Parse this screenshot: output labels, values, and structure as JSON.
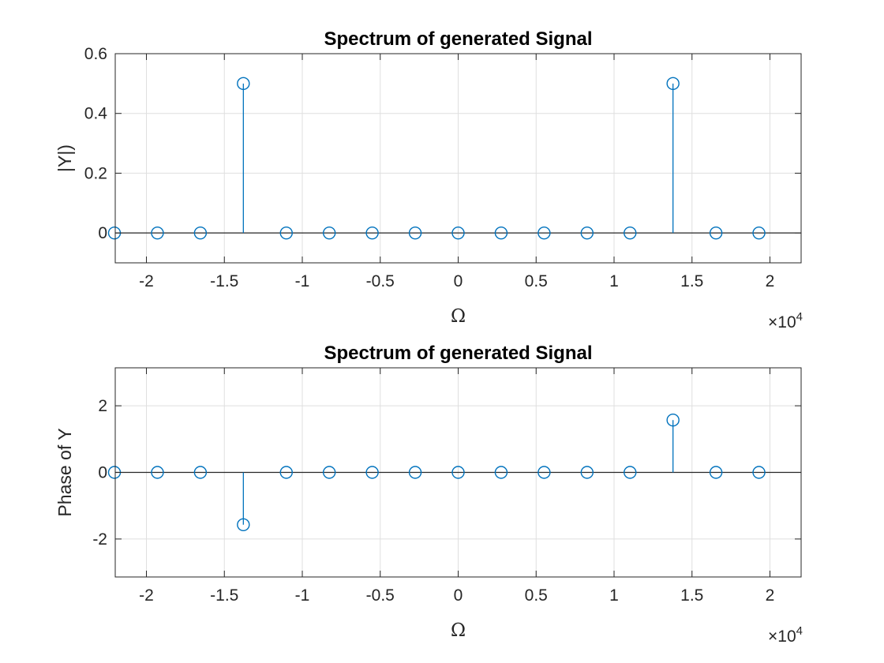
{
  "chart_data": [
    {
      "type": "stem",
      "title": "Spectrum of generated Signal",
      "xlabel": "Ω",
      "ylabel": "|Y|)",
      "x_multiplier": {
        "times": "×",
        "base": "10",
        "exp": "4"
      },
      "xlim": [
        -22000,
        22000
      ],
      "ylim": [
        -0.1,
        0.6
      ],
      "xticks": [
        -20000,
        -15000,
        -10000,
        -5000,
        0,
        5000,
        10000,
        15000,
        20000
      ],
      "xticklabels": [
        "-2",
        "-1.5",
        "-1",
        "-0.5",
        "0",
        "0.5",
        "1",
        "1.5",
        "2"
      ],
      "yticks": [
        0,
        0.2,
        0.4,
        0.6
      ],
      "yticklabels": [
        "0",
        "0.2",
        "0.4",
        "0.6"
      ],
      "grid": true,
      "color": "#0072BD",
      "x": [
        -22050,
        -19294,
        -16538,
        -13781,
        -11025,
        -8269,
        -5513,
        -2756,
        0,
        2756,
        5513,
        8269,
        11025,
        13781,
        16538,
        19294
      ],
      "y": [
        0,
        0,
        0,
        0.5,
        0,
        0,
        0,
        0,
        0,
        0,
        0,
        0,
        0,
        0.5,
        0,
        0
      ]
    },
    {
      "type": "stem",
      "title": "Spectrum of generated Signal",
      "xlabel": "Ω",
      "ylabel": "Phase of Y",
      "x_multiplier": {
        "times": "×",
        "base": "10",
        "exp": "4"
      },
      "xlim": [
        -22000,
        22000
      ],
      "ylim": [
        -3.14,
        3.14
      ],
      "xticks": [
        -20000,
        -15000,
        -10000,
        -5000,
        0,
        5000,
        10000,
        15000,
        20000
      ],
      "xticklabels": [
        "-2",
        "-1.5",
        "-1",
        "-0.5",
        "0",
        "0.5",
        "1",
        "1.5",
        "2"
      ],
      "yticks": [
        -2,
        0,
        2
      ],
      "yticklabels": [
        "-2",
        "0",
        "2"
      ],
      "grid": true,
      "color": "#0072BD",
      "x": [
        -22050,
        -19294,
        -16538,
        -13781,
        -11025,
        -8269,
        -5513,
        -2756,
        0,
        2756,
        5513,
        8269,
        11025,
        13781,
        16538,
        19294
      ],
      "y": [
        0,
        0,
        0,
        -1.5708,
        0,
        0,
        0,
        0,
        0,
        0,
        0,
        0,
        0,
        1.5708,
        0,
        0
      ]
    }
  ]
}
